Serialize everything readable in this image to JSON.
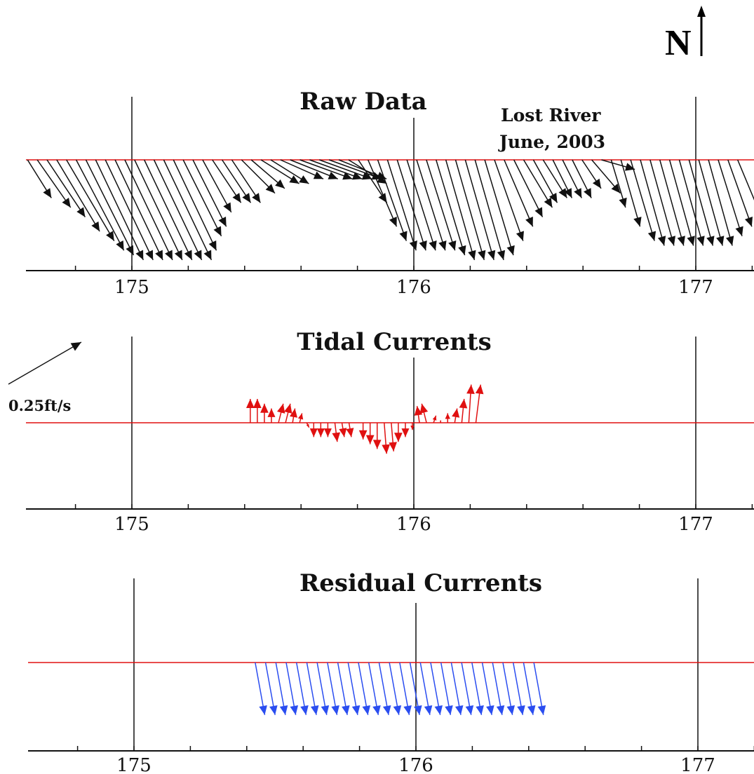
{
  "north_label": "N",
  "scale": {
    "label": "0.25ft/s",
    "speed_ftps": 0.25,
    "direction_deg": 60
  },
  "colors": {
    "raw": "#111111",
    "tidal": "#e01010",
    "residual": "#2a4df0",
    "baseline": "#e01010",
    "axis": "#111111",
    "gridline": "#111111"
  },
  "chart_data": [
    {
      "type": "vector-stickplot",
      "title": "Raw Data",
      "annotation": [
        "Lost River",
        "June, 2003"
      ],
      "xlim": [
        174.62,
        177.2
      ],
      "major_ticks": [
        175,
        176,
        177
      ],
      "tick_labels": [
        "175",
        "176",
        "177"
      ],
      "minor_tick_step": 0.2,
      "color": "#111111",
      "samples": {
        "start": 174.63,
        "step": 0.0345,
        "count": 74
      },
      "vectors_ftps": [
        [
          0.05,
          -0.08
        ],
        [
          0.07,
          -0.1
        ],
        [
          0.08,
          -0.12
        ],
        [
          0.09,
          -0.15
        ],
        [
          0.1,
          -0.17
        ],
        [
          0.1,
          -0.19
        ],
        [
          0.1,
          -0.2
        ],
        [
          0.1,
          -0.21
        ],
        [
          0.1,
          -0.21
        ],
        [
          0.1,
          -0.21
        ],
        [
          0.1,
          -0.21
        ],
        [
          0.1,
          -0.21
        ],
        [
          0.1,
          -0.21
        ],
        [
          0.1,
          -0.21
        ],
        [
          0.1,
          -0.21
        ],
        [
          0.09,
          -0.19
        ],
        [
          0.08,
          -0.16
        ],
        [
          0.07,
          -0.14
        ],
        [
          0.06,
          -0.11
        ],
        [
          0.06,
          -0.09
        ],
        [
          0.06,
          -0.09
        ],
        [
          0.06,
          -0.09
        ],
        [
          0.07,
          -0.07
        ],
        [
          0.07,
          -0.06
        ],
        [
          0.08,
          -0.05
        ],
        [
          0.08,
          -0.05
        ],
        [
          0.09,
          -0.04
        ],
        [
          0.1,
          -0.04
        ],
        [
          0.11,
          -0.04
        ],
        [
          0.11,
          -0.04
        ],
        [
          0.11,
          -0.04
        ],
        [
          0.11,
          -0.04
        ],
        [
          0.1,
          -0.04
        ],
        [
          0.08,
          -0.05
        ],
        [
          0.06,
          -0.09
        ],
        [
          0.06,
          -0.14
        ],
        [
          0.06,
          -0.17
        ],
        [
          0.06,
          -0.19
        ],
        [
          0.06,
          -0.19
        ],
        [
          0.06,
          -0.19
        ],
        [
          0.06,
          -0.19
        ],
        [
          0.06,
          -0.19
        ],
        [
          0.06,
          -0.2
        ],
        [
          0.06,
          -0.21
        ],
        [
          0.06,
          -0.21
        ],
        [
          0.06,
          -0.21
        ],
        [
          0.06,
          -0.21
        ],
        [
          0.06,
          -0.2
        ],
        [
          0.06,
          -0.17
        ],
        [
          0.06,
          -0.14
        ],
        [
          0.06,
          -0.12
        ],
        [
          0.06,
          -0.1
        ],
        [
          0.05,
          -0.09
        ],
        [
          0.05,
          -0.08
        ],
        [
          0.04,
          -0.08
        ],
        [
          0.04,
          -0.08
        ],
        [
          0.04,
          -0.08
        ],
        [
          0.04,
          -0.06
        ],
        [
          0.06,
          -0.07
        ],
        [
          0.07,
          -0.02
        ],
        [
          0.03,
          -0.1
        ],
        [
          0.04,
          -0.14
        ],
        [
          0.05,
          -0.17
        ],
        [
          0.05,
          -0.18
        ],
        [
          0.05,
          -0.18
        ],
        [
          0.05,
          -0.18
        ],
        [
          0.05,
          -0.18
        ],
        [
          0.05,
          -0.18
        ],
        [
          0.05,
          -0.18
        ],
        [
          0.05,
          -0.18
        ],
        [
          0.05,
          -0.18
        ],
        [
          0.05,
          -0.16
        ],
        [
          0.05,
          -0.14
        ],
        [
          0.05,
          -0.12
        ]
      ]
    },
    {
      "type": "vector-stickplot",
      "title": "Tidal Currents",
      "xlim": [
        174.62,
        177.2
      ],
      "major_ticks": [
        175,
        176,
        177
      ],
      "tick_labels": [
        "175",
        "176",
        "177"
      ],
      "minor_tick_step": 0.2,
      "color": "#e01010",
      "samples": {
        "start": 175.42,
        "step": 0.025,
        "count": 33
      },
      "vectors_ftps": [
        [
          0,
          0.05
        ],
        [
          0,
          0.05
        ],
        [
          0,
          0.04
        ],
        [
          0,
          0.03
        ],
        [
          0.01,
          0.04
        ],
        [
          0.01,
          0.04
        ],
        [
          0.005,
          0.03
        ],
        [
          0.005,
          0.02
        ],
        [
          0.005,
          -0.01
        ],
        [
          0,
          -0.03
        ],
        [
          0,
          -0.03
        ],
        [
          0,
          -0.03
        ],
        [
          0.005,
          -0.04
        ],
        [
          0.005,
          -0.03
        ],
        [
          0.005,
          -0.03
        ],
        [
          0,
          0
        ],
        [
          0,
          -0.035
        ],
        [
          0,
          -0.045
        ],
        [
          0,
          -0.055
        ],
        [
          0.005,
          -0.065
        ],
        [
          0.005,
          -0.06
        ],
        [
          0,
          -0.04
        ],
        [
          0,
          -0.03
        ],
        [
          0,
          -0.015
        ],
        [
          -0.005,
          0.035
        ],
        [
          -0.01,
          0.04
        ],
        [
          0.005,
          0.015
        ],
        [
          0,
          0.005
        ],
        [
          0,
          0.02
        ],
        [
          0.005,
          0.03
        ],
        [
          0.005,
          0.05
        ],
        [
          0.005,
          0.08
        ],
        [
          0.01,
          0.08
        ]
      ]
    },
    {
      "type": "vector-stickplot",
      "title": "Residual Currents",
      "xlim": [
        174.62,
        177.2
      ],
      "major_ticks": [
        175,
        176,
        177
      ],
      "tick_labels": [
        "175",
        "176",
        "177"
      ],
      "minor_tick_step": 0.2,
      "color": "#2a4df0",
      "samples": {
        "start": 175.43,
        "step": 0.0366,
        "count": 28
      },
      "vectors_ftps": [
        [
          0.02,
          -0.11
        ],
        [
          0.02,
          -0.11
        ],
        [
          0.02,
          -0.11
        ],
        [
          0.02,
          -0.11
        ],
        [
          0.02,
          -0.11
        ],
        [
          0.02,
          -0.11
        ],
        [
          0.02,
          -0.11
        ],
        [
          0.02,
          -0.11
        ],
        [
          0.02,
          -0.11
        ],
        [
          0.02,
          -0.11
        ],
        [
          0.02,
          -0.11
        ],
        [
          0.02,
          -0.11
        ],
        [
          0.02,
          -0.11
        ],
        [
          0.02,
          -0.11
        ],
        [
          0.02,
          -0.11
        ],
        [
          0.02,
          -0.11
        ],
        [
          0.02,
          -0.11
        ],
        [
          0.02,
          -0.11
        ],
        [
          0.02,
          -0.11
        ],
        [
          0.02,
          -0.11
        ],
        [
          0.02,
          -0.11
        ],
        [
          0.02,
          -0.11
        ],
        [
          0.02,
          -0.11
        ],
        [
          0.02,
          -0.11
        ],
        [
          0.02,
          -0.11
        ],
        [
          0.02,
          -0.11
        ],
        [
          0.02,
          -0.11
        ],
        [
          0.02,
          -0.11
        ]
      ]
    }
  ]
}
